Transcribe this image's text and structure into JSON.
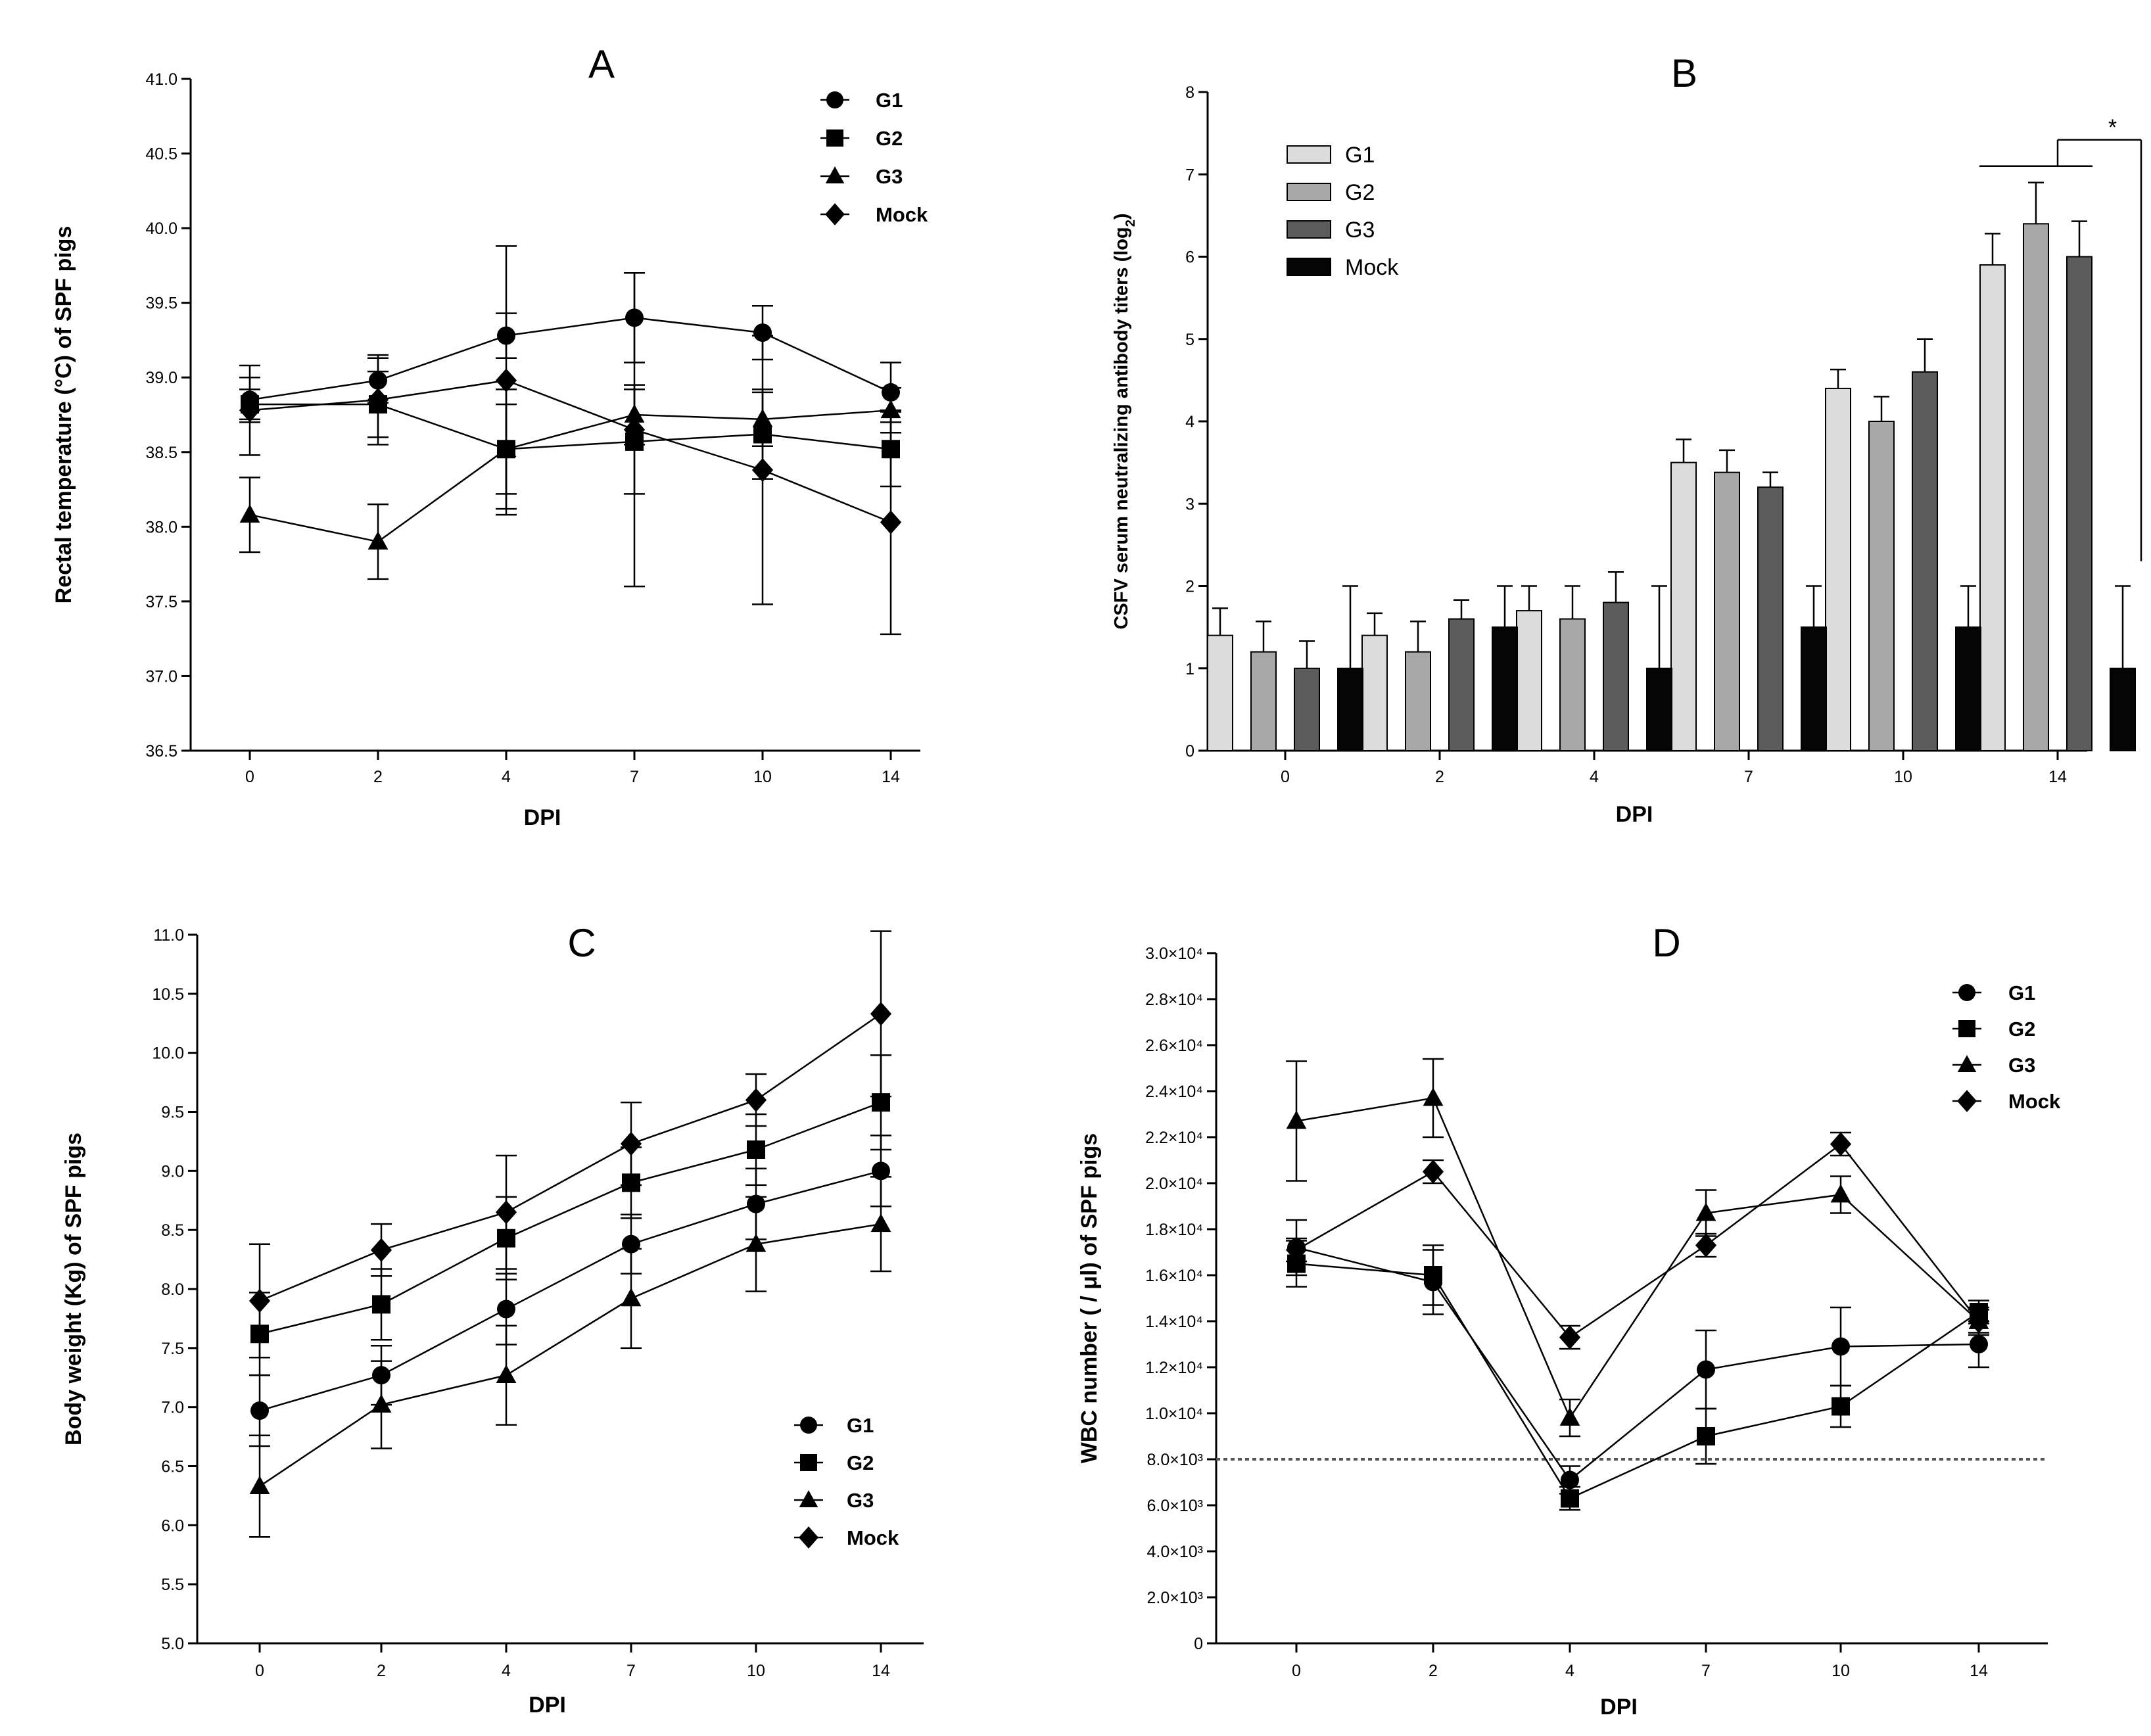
{
  "chart_data": [
    {
      "id": "A",
      "type": "line",
      "title": "A",
      "xlabel": "DPI",
      "ylabel": "Rectal temperature (°C) of SPF pigs",
      "categories": [
        "0",
        "2",
        "4",
        "7",
        "10",
        "14"
      ],
      "ylim": [
        36.5,
        41.0
      ],
      "yticks": [
        "36.5",
        "37.0",
        "37.5",
        "38.0",
        "38.5",
        "39.0",
        "39.5",
        "40.0",
        "40.5",
        "41.0"
      ],
      "ytick_values": [
        36.5,
        37.0,
        37.5,
        38.0,
        38.5,
        39.0,
        39.5,
        40.0,
        40.5,
        41.0
      ],
      "legend_position": "top-right",
      "series": [
        {
          "name": "G1",
          "marker": "circle",
          "values": [
            38.85,
            38.98,
            39.28,
            39.4,
            39.3,
            38.9
          ],
          "errors": [
            0.15,
            0.15,
            0.15,
            0.3,
            0.18,
            0.2
          ]
        },
        {
          "name": "G2",
          "marker": "square",
          "values": [
            38.82,
            38.82,
            38.52,
            38.57,
            38.62,
            38.52
          ],
          "errors": [
            0.1,
            0.22,
            0.4,
            0.35,
            0.3,
            0.25
          ]
        },
        {
          "name": "G3",
          "marker": "triangle",
          "values": [
            38.08,
            37.9,
            38.52,
            38.75,
            38.72,
            38.78
          ],
          "errors": [
            0.25,
            0.25,
            0.3,
            0.2,
            0.18,
            0.15
          ]
        },
        {
          "name": "Mock",
          "marker": "diamond",
          "values": [
            38.78,
            38.85,
            38.98,
            38.65,
            38.38,
            38.03
          ],
          "errors": [
            0.3,
            0.3,
            0.9,
            1.05,
            0.9,
            0.75
          ]
        }
      ]
    },
    {
      "id": "B",
      "type": "bar",
      "title": "B",
      "xlabel": "DPI",
      "ylabel": "CSFV serum neutralizing antibody titers (log",
      "ylabel_sub": "2",
      "ylabel_end": ")",
      "categories": [
        "0",
        "2",
        "4",
        "7",
        "10",
        "14"
      ],
      "ylim": [
        0,
        8
      ],
      "yticks": [
        "0",
        "1",
        "2",
        "3",
        "4",
        "5",
        "6",
        "7",
        "8"
      ],
      "ytick_values": [
        0,
        1,
        2,
        3,
        4,
        5,
        6,
        7,
        8
      ],
      "legend_position": "top-left",
      "significance": "*",
      "series": [
        {
          "name": "G1",
          "color": "#dcdcdc",
          "values": [
            1.4,
            1.4,
            1.7,
            3.5,
            4.4,
            5.9
          ],
          "errors": [
            0.33,
            0.27,
            0.3,
            0.28,
            0.23,
            0.38
          ]
        },
        {
          "name": "G2",
          "color": "#a8a8a8",
          "values": [
            1.2,
            1.2,
            1.6,
            3.38,
            4.0,
            6.4
          ],
          "errors": [
            0.37,
            0.37,
            0.4,
            0.27,
            0.3,
            0.5
          ]
        },
        {
          "name": "G3",
          "color": "#5c5c5c",
          "values": [
            1.0,
            1.6,
            1.8,
            3.2,
            4.6,
            6.0
          ],
          "errors": [
            0.33,
            0.23,
            0.37,
            0.18,
            0.4,
            0.43
          ]
        },
        {
          "name": "Mock",
          "color": "#050505",
          "values": [
            1.0,
            1.5,
            1.0,
            1.5,
            1.5,
            1.0
          ],
          "errors": [
            1.0,
            0.5,
            1.0,
            0.5,
            0.5,
            1.0
          ]
        }
      ]
    },
    {
      "id": "C",
      "type": "line",
      "title": "C",
      "xlabel": "DPI",
      "ylabel": "Body weight (Kg) of SPF pigs",
      "categories": [
        "0",
        "2",
        "4",
        "7",
        "10",
        "14"
      ],
      "ylim": [
        5.0,
        11.0
      ],
      "yticks": [
        "5.0",
        "5.5",
        "6.0",
        "6.5",
        "7.0",
        "7.5",
        "8.0",
        "8.5",
        "9.0",
        "9.5",
        "10.0",
        "10.5",
        "11.0"
      ],
      "ytick_values": [
        5.0,
        5.5,
        6.0,
        6.5,
        7.0,
        7.5,
        8.0,
        8.5,
        9.0,
        9.5,
        10.0,
        10.5,
        11.0
      ],
      "legend_position": "bottom-right",
      "series": [
        {
          "name": "G1",
          "marker": "circle",
          "values": [
            6.97,
            7.27,
            7.83,
            8.38,
            8.72,
            9.0
          ],
          "errors": [
            0.3,
            0.25,
            0.3,
            0.25,
            0.3,
            0.3
          ]
        },
        {
          "name": "G2",
          "marker": "square",
          "values": [
            7.62,
            7.87,
            8.43,
            8.9,
            9.18,
            9.58
          ],
          "errors": [
            0.35,
            0.3,
            0.35,
            0.3,
            0.3,
            0.4
          ]
        },
        {
          "name": "G3",
          "marker": "triangle",
          "values": [
            6.33,
            7.02,
            7.27,
            7.92,
            8.38,
            8.55
          ],
          "errors": [
            0.43,
            0.37,
            0.42,
            0.42,
            0.4,
            0.4
          ]
        },
        {
          "name": "Mock",
          "marker": "diamond",
          "values": [
            7.9,
            8.33,
            8.65,
            9.23,
            9.6,
            10.33
          ],
          "errors": [
            0.48,
            0.22,
            0.48,
            0.35,
            0.22,
            0.7
          ]
        }
      ]
    },
    {
      "id": "D",
      "type": "line",
      "title": "D",
      "xlabel": "DPI",
      "ylabel": "WBC number ( / μl) of SPF pigs",
      "categories": [
        "0",
        "2",
        "4",
        "7",
        "10",
        "14"
      ],
      "ylim": [
        0,
        30000
      ],
      "yticks": [
        "0",
        "2.0×10³",
        "4.0×10³",
        "6.0×10³",
        "8.0×10³",
        "1.0×10⁴",
        "1.2×10⁴",
        "1.4×10⁴",
        "1.6×10⁴",
        "1.8×10⁴",
        "2.0×10⁴",
        "2.2×10⁴",
        "2.4×10⁴",
        "2.6×10⁴",
        "2.8×10⁴",
        "3.0×10⁴"
      ],
      "ytick_values": [
        0,
        2000,
        4000,
        6000,
        8000,
        10000,
        12000,
        14000,
        16000,
        18000,
        20000,
        22000,
        24000,
        26000,
        28000,
        30000
      ],
      "reference_line": 8000,
      "legend_position": "top-right",
      "series": [
        {
          "name": "G1",
          "marker": "circle",
          "values": [
            17200,
            15700,
            7100,
            11900,
            12900,
            13000
          ],
          "errors": [
            1200,
            1400,
            600,
            1700,
            1700,
            1000
          ]
        },
        {
          "name": "G2",
          "marker": "square",
          "values": [
            16500,
            16000,
            6300,
            9000,
            10300,
            14400
          ],
          "errors": [
            1000,
            1300,
            500,
            1200,
            900,
            500
          ]
        },
        {
          "name": "G3",
          "marker": "triangle",
          "values": [
            22700,
            23700,
            9800,
            18700,
            19500,
            14000
          ],
          "errors": [
            2600,
            1700,
            800,
            1000,
            800,
            600
          ]
        },
        {
          "name": "Mock",
          "marker": "diamond",
          "values": [
            17100,
            20500,
            13300,
            17300,
            21700,
            14000
          ],
          "errors": [
            500,
            500,
            500,
            500,
            500,
            500
          ]
        }
      ]
    }
  ]
}
